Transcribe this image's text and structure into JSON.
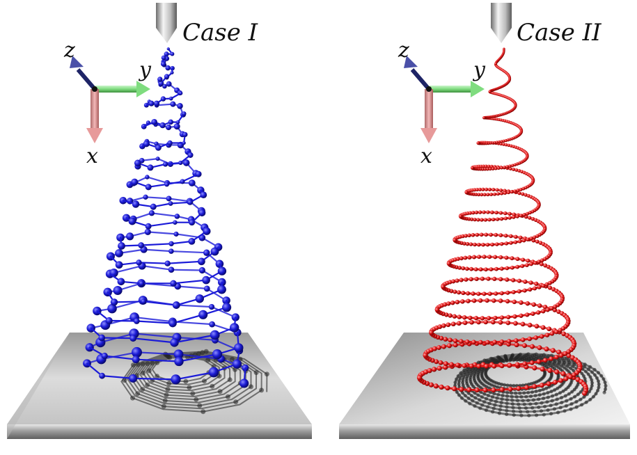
{
  "panels": [
    {
      "id": "case-1",
      "title": "Case I",
      "bead_color": "#1a1ad8",
      "bead_highlight": "#7a7aff",
      "style": "coarse",
      "turns": 17
    },
    {
      "id": "case-2",
      "title": "Case II",
      "bead_color": "#e01818",
      "bead_highlight": "#ff8c8c",
      "style": "fine",
      "turns": 14
    }
  ],
  "axes": {
    "x_label": "x",
    "y_label": "y",
    "z_label": "z",
    "x_color": "#e79a9a",
    "y_color": "#8ee68e",
    "z_color": "#4a50a8"
  }
}
